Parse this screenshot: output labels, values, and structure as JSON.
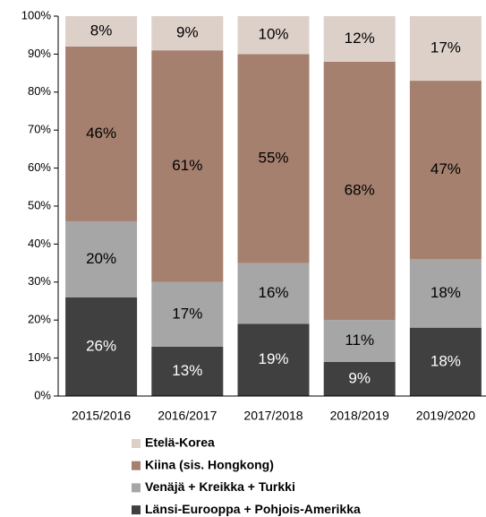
{
  "chart_data": {
    "type": "stacked_bar",
    "categories": [
      "2015/2016",
      "2016/2017",
      "2017/2018",
      "2018/2019",
      "2019/2020"
    ],
    "series": [
      {
        "name": "Länsi-Eurooppa + Pohjois-Amerikka",
        "color": "#404040",
        "values": [
          26,
          13,
          19,
          9,
          18
        ],
        "value_labels": [
          "26%",
          "13%",
          "19%",
          "9%",
          "18%"
        ]
      },
      {
        "name": "Venäjä + Kreikka + Turkki",
        "color": "#a6a6a6",
        "values": [
          20,
          17,
          16,
          11,
          18
        ],
        "value_labels": [
          "20%",
          "17%",
          "16%",
          "11%",
          "18%"
        ]
      },
      {
        "name": "Kiina (sis. Hongkong)",
        "color": "#a6806f",
        "values": [
          46,
          61,
          55,
          68,
          47
        ],
        "value_labels": [
          "46%",
          "61%",
          "55%",
          "68%",
          "47%"
        ]
      },
      {
        "name": "Etelä-Korea",
        "color": "#ddd0c9",
        "values": [
          8,
          9,
          10,
          12,
          17
        ],
        "value_labels": [
          "8%",
          "9%",
          "10%",
          "12%",
          "17%"
        ]
      }
    ],
    "ylim": [
      0,
      100
    ],
    "yticks": [
      {
        "value": 0,
        "label": "0%"
      },
      {
        "value": 10,
        "label": "10%"
      },
      {
        "value": 20,
        "label": "20%"
      },
      {
        "value": 30,
        "label": "30%"
      },
      {
        "value": 40,
        "label": "40%"
      },
      {
        "value": 50,
        "label": "50%"
      },
      {
        "value": 60,
        "label": "60%"
      },
      {
        "value": 70,
        "label": "70%"
      },
      {
        "value": 80,
        "label": "80%"
      },
      {
        "value": 90,
        "label": "90%"
      },
      {
        "value": 100,
        "label": "100%"
      }
    ],
    "legend": "bottom"
  }
}
